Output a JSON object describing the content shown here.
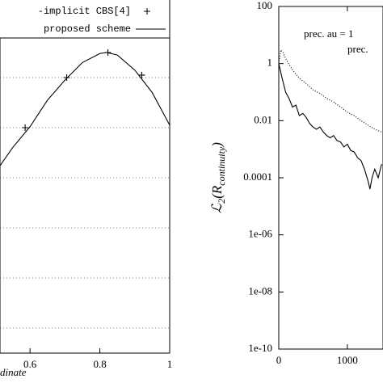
{
  "chart_data": [
    {
      "type": "line",
      "xlabel": "dinate",
      "xlim": [
        0.514,
        1
      ],
      "xticks": [
        0.6,
        0.8,
        1
      ],
      "ylim": [
        0,
        7
      ],
      "ygrid": [
        0.5,
        1.5,
        2.5,
        3.5,
        4.5,
        5.5
      ],
      "grid": true,
      "series": [
        {
          "name": "-implicit CBS[4]",
          "color": "#000000",
          "marker": "+",
          "line": false,
          "x": [
            0.586,
            0.705,
            0.823,
            0.92
          ],
          "values": [
            4.5,
            5.5,
            6.0,
            5.55
          ]
        },
        {
          "name": "proposed scheme",
          "color": "#000000",
          "marker": null,
          "line": "solid",
          "x": [
            0.514,
            0.55,
            0.6,
            0.65,
            0.7,
            0.75,
            0.8,
            0.82,
            0.85,
            0.9,
            0.95,
            1.0
          ],
          "values": [
            3.74,
            4.1,
            4.52,
            5.05,
            5.45,
            5.8,
            5.98,
            6.0,
            5.95,
            5.65,
            5.2,
            4.55
          ]
        }
      ]
    },
    {
      "type": "line",
      "log_y": true,
      "ylabel": [
        "ℒ",
        "2",
        "(R",
        "continuity",
        ")"
      ],
      "xlim": [
        0,
        1520
      ],
      "xticks": [
        0,
        1000
      ],
      "ylim": [
        1e-10,
        100
      ],
      "yticks": [
        100,
        1,
        0.01,
        0.0001,
        {
          "value": 1e-06,
          "label": "1e-06"
        },
        {
          "value": 1e-08,
          "label": "1e-08"
        },
        {
          "value": 1e-10,
          "label": "1e-10"
        }
      ],
      "series": [
        {
          "name": "prec. au = 1",
          "color": "#000000",
          "line": "dotted",
          "x": [
            0,
            30,
            60,
            100,
            200,
            300,
            400,
            500,
            600,
            700,
            800,
            900,
            1000,
            1100,
            1200,
            1300,
            1400,
            1500
          ],
          "values": [
            1,
            3,
            2.5,
            1.5,
            0.6,
            0.3,
            0.2,
            0.12,
            0.09,
            0.06,
            0.045,
            0.03,
            0.02,
            0.015,
            0.01,
            0.007,
            0.005,
            0.004
          ]
        },
        {
          "name": "prec.",
          "color": "#000000",
          "line": "solid",
          "x": [
            0,
            50,
            100,
            150,
            200,
            250,
            300,
            350,
            400,
            450,
            500,
            550,
            600,
            650,
            700,
            750,
            800,
            850,
            900,
            950,
            1000,
            1050,
            1100,
            1150,
            1200,
            1250,
            1300,
            1330,
            1360,
            1400,
            1450,
            1500
          ],
          "values": [
            1,
            0.3,
            0.1,
            0.06,
            0.03,
            0.035,
            0.015,
            0.018,
            0.013,
            0.008,
            0.006,
            0.005,
            0.006,
            0.004,
            0.003,
            0.0025,
            0.003,
            0.002,
            0.0018,
            0.0012,
            0.0015,
            0.0009,
            0.0008,
            0.0005,
            0.0004,
            0.0002,
            8e-05,
            4e-05,
            0.0001,
            0.0002,
            0.0001,
            0.0003
          ]
        }
      ]
    }
  ]
}
